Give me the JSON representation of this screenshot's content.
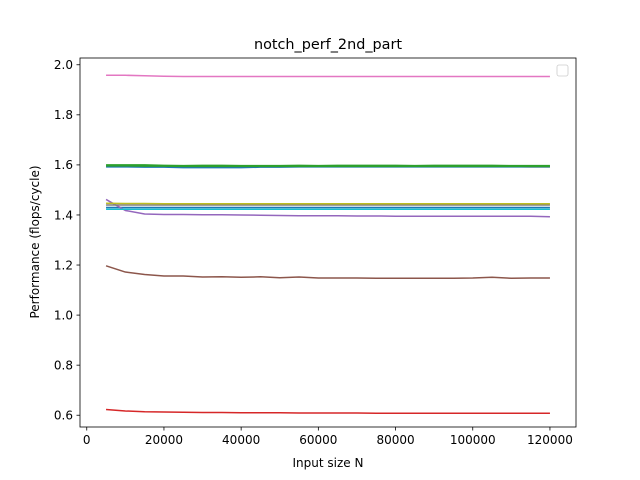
{
  "chart_data": {
    "type": "line",
    "title": "notch_perf_2nd_part",
    "xlabel": "Input size N",
    "ylabel": "Performance (flops/cycle)",
    "xlim": [
      -1750,
      126750
    ],
    "ylim": [
      0.553,
      2.027
    ],
    "xticks": [
      0,
      20000,
      40000,
      60000,
      80000,
      100000,
      120000
    ],
    "xtick_labels": [
      "0",
      "20000",
      "40000",
      "60000",
      "80000",
      "100000",
      "120000"
    ],
    "yticks": [
      0.6,
      0.8,
      1.0,
      1.2,
      1.4,
      1.6,
      1.8,
      2.0
    ],
    "ytick_labels": [
      "0.6",
      "0.8",
      "1.0",
      "1.2",
      "1.4",
      "1.6",
      "1.8",
      "2.0"
    ],
    "grid": false,
    "legend": "top-right (empty)",
    "x": [
      5000,
      10000,
      15000,
      20000,
      25000,
      30000,
      35000,
      40000,
      45000,
      50000,
      55000,
      60000,
      65000,
      70000,
      75000,
      80000,
      85000,
      90000,
      95000,
      100000,
      105000,
      110000,
      115000,
      120000
    ],
    "series": [
      {
        "color": "#1f77b4",
        "values": [
          1.43,
          1.43,
          1.43,
          1.43,
          1.43,
          1.43,
          1.43,
          1.43,
          1.43,
          1.43,
          1.43,
          1.43,
          1.43,
          1.43,
          1.43,
          1.43,
          1.43,
          1.43,
          1.43,
          1.43,
          1.43,
          1.43,
          1.43,
          1.43
        ]
      },
      {
        "color": "#ff7f0e",
        "values": [
          1.594,
          1.594,
          1.594,
          1.593,
          1.593,
          1.593,
          1.593,
          1.593,
          1.593,
          1.593,
          1.593,
          1.593,
          1.593,
          1.593,
          1.593,
          1.593,
          1.593,
          1.593,
          1.593,
          1.593,
          1.593,
          1.593,
          1.592,
          1.592
        ]
      },
      {
        "color": "#2ca02c",
        "values": [
          1.6,
          1.6,
          1.6,
          1.598,
          1.597,
          1.598,
          1.598,
          1.597,
          1.597,
          1.597,
          1.598,
          1.597,
          1.598,
          1.598,
          1.598,
          1.598,
          1.597,
          1.598,
          1.598,
          1.598,
          1.598,
          1.597,
          1.597,
          1.597
        ]
      },
      {
        "color": "#d62728",
        "values": [
          0.623,
          0.617,
          0.614,
          0.613,
          0.612,
          0.611,
          0.611,
          0.61,
          0.61,
          0.61,
          0.609,
          0.609,
          0.609,
          0.609,
          0.608,
          0.608,
          0.608,
          0.608,
          0.608,
          0.608,
          0.608,
          0.608,
          0.608,
          0.608
        ]
      },
      {
        "color": "#9467bd",
        "values": [
          1.462,
          1.418,
          1.404,
          1.402,
          1.402,
          1.401,
          1.401,
          1.4,
          1.399,
          1.398,
          1.397,
          1.397,
          1.397,
          1.396,
          1.396,
          1.395,
          1.395,
          1.395,
          1.395,
          1.395,
          1.395,
          1.395,
          1.395,
          1.393
        ]
      },
      {
        "color": "#8c564b",
        "values": [
          1.197,
          1.172,
          1.162,
          1.156,
          1.156,
          1.152,
          1.153,
          1.151,
          1.153,
          1.149,
          1.152,
          1.148,
          1.148,
          1.148,
          1.147,
          1.147,
          1.147,
          1.147,
          1.147,
          1.148,
          1.151,
          1.147,
          1.148,
          1.148
        ]
      },
      {
        "color": "#e377c2",
        "values": [
          1.958,
          1.958,
          1.956,
          1.954,
          1.953,
          1.953,
          1.953,
          1.953,
          1.953,
          1.953,
          1.953,
          1.953,
          1.953,
          1.953,
          1.953,
          1.953,
          1.953,
          1.953,
          1.953,
          1.953,
          1.953,
          1.953,
          1.953,
          1.953
        ]
      },
      {
        "color": "#7f7f7f",
        "values": [
          1.44,
          1.44,
          1.44,
          1.44,
          1.44,
          1.44,
          1.44,
          1.44,
          1.44,
          1.44,
          1.44,
          1.44,
          1.44,
          1.44,
          1.44,
          1.44,
          1.44,
          1.44,
          1.44,
          1.44,
          1.44,
          1.44,
          1.44,
          1.44
        ]
      },
      {
        "color": "#bcbd22",
        "values": [
          1.447,
          1.446,
          1.446,
          1.445,
          1.445,
          1.445,
          1.445,
          1.445,
          1.445,
          1.445,
          1.445,
          1.445,
          1.445,
          1.445,
          1.445,
          1.445,
          1.445,
          1.445,
          1.445,
          1.445,
          1.445,
          1.445,
          1.445,
          1.445
        ]
      },
      {
        "color": "#17becf",
        "values": [
          1.423,
          1.423,
          1.423,
          1.423,
          1.423,
          1.423,
          1.423,
          1.423,
          1.423,
          1.423,
          1.423,
          1.423,
          1.423,
          1.423,
          1.423,
          1.423,
          1.423,
          1.423,
          1.423,
          1.423,
          1.423,
          1.423,
          1.423,
          1.423
        ]
      },
      {
        "color": "#1f77b4",
        "values": [
          1.592,
          1.592,
          1.591,
          1.591,
          1.589,
          1.589,
          1.589,
          1.589,
          1.591,
          1.591,
          1.592,
          1.592,
          1.592,
          1.592,
          1.592,
          1.592,
          1.592,
          1.592,
          1.592,
          1.592,
          1.592,
          1.592,
          1.592,
          1.592
        ]
      },
      {
        "color": "#2ca02c",
        "values": [
          1.596,
          1.596,
          1.595,
          1.595,
          1.594,
          1.594,
          1.594,
          1.594,
          1.594,
          1.594,
          1.594,
          1.594,
          1.594,
          1.594,
          1.594,
          1.594,
          1.594,
          1.594,
          1.594,
          1.594,
          1.594,
          1.594,
          1.594,
          1.594
        ]
      }
    ]
  }
}
